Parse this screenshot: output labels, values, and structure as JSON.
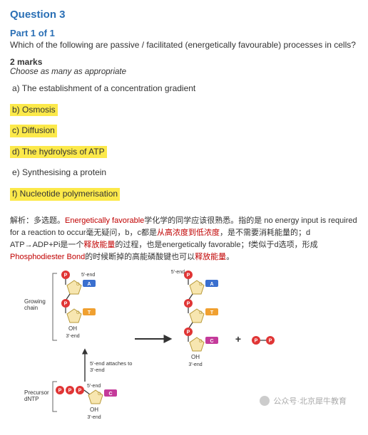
{
  "question": {
    "title": "Question 3",
    "part": "Part 1 of 1",
    "stem": "Which of the following are passive / facilitated (energetically favourable) processes in cells?",
    "marks": "2 marks",
    "instruction": "Choose as many as appropriate",
    "options": [
      {
        "letter": "a)",
        "text": "The establishment of a concentration gradient",
        "highlight": false
      },
      {
        "letter": "b)",
        "text": "Osmosis",
        "highlight": true
      },
      {
        "letter": "c)",
        "text": "Diffusion",
        "highlight": true
      },
      {
        "letter": "d)",
        "text": "The hydrolysis of ATP",
        "highlight": true
      },
      {
        "letter": "e)",
        "text": "Synthesising a protein",
        "highlight": false
      },
      {
        "letter": "f)",
        "text": "Nucleotide polymerisation",
        "highlight": true
      }
    ]
  },
  "analysis": {
    "prefix": "解析：多选题。",
    "r1": "Energetically favorable",
    "t1": "学化学的同学应该很熟悉。指的是 no energy input is required for a reaction to occur毫无疑问，b，c都是",
    "r2": "从高浓度到低浓度",
    "t2": "，是不需要消耗能量的；d ATP→ADP+Pi是一个",
    "r3": "释放能量",
    "t3": "的过程，也是energetically favorable；f类似于d选项，形成",
    "r4": "Phosphodiester Bond",
    "t4": "的时候断掉的高能磷酸键也可以",
    "r5": "释放能量",
    "t5": "。"
  },
  "diagram": {
    "labels": {
      "growing": "Growing\nchain",
      "precursor": "Precursor\ndNTP",
      "five": "5'-end",
      "three": "3'-end",
      "oh": "OH",
      "attach": "5'-end attaches to\n3'-end"
    },
    "colors": {
      "pentose": "#f7e6b0",
      "pentose_stroke": "#b89a3a",
      "phosphate": "#e03535",
      "baseA": "#3a6fcf",
      "baseT": "#f0a030",
      "baseC": "#c43a9a",
      "arrow": "#333333",
      "text": "#333333",
      "bracket": "#666666"
    }
  },
  "watermark": "公众号·北京犀牛教育"
}
